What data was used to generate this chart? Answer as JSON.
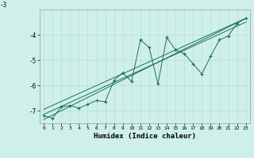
{
  "title": "",
  "xlabel": "Humidex (Indice chaleur)",
  "bg_color": "#cff0ea",
  "grid_color": "#b8ddd6",
  "line_color": "#1a6e5e",
  "xlim": [
    -0.5,
    23.5
  ],
  "ylim": [
    -7.5,
    -3.0
  ],
  "yticks": [
    -7,
    -6,
    -5,
    -4
  ],
  "ytick_labels": [
    "-7",
    "-6",
    "-5",
    "-4"
  ],
  "xticks": [
    0,
    1,
    2,
    3,
    4,
    5,
    6,
    7,
    8,
    9,
    10,
    11,
    12,
    13,
    14,
    15,
    16,
    17,
    18,
    19,
    20,
    21,
    22,
    23
  ],
  "xtick_labels": [
    "0",
    "1",
    "2",
    "3",
    "4",
    "5",
    "6",
    "7",
    "8",
    "9",
    "10",
    "11",
    "12",
    "13",
    "14",
    "15",
    "16",
    "17",
    "18",
    "19",
    "20",
    "21",
    "22",
    "23"
  ],
  "scatter_x": [
    0,
    1,
    2,
    3,
    4,
    5,
    6,
    7,
    8,
    9,
    10,
    11,
    12,
    13,
    14,
    15,
    16,
    17,
    18,
    19,
    20,
    21,
    22,
    23
  ],
  "scatter_y": [
    -7.2,
    -7.3,
    -6.85,
    -6.8,
    -6.9,
    -6.75,
    -6.6,
    -6.65,
    -5.8,
    -5.5,
    -5.85,
    -4.2,
    -4.5,
    -5.95,
    -4.1,
    -4.6,
    -4.75,
    -5.15,
    -5.55,
    -4.85,
    -4.2,
    -4.05,
    -3.55,
    -3.35
  ],
  "line1_x": [
    0,
    23
  ],
  "line1_y": [
    -7.35,
    -3.35
  ],
  "line2_x": [
    0,
    23
  ],
  "line2_y": [
    -7.15,
    -3.5
  ],
  "line3_x": [
    0,
    23
  ],
  "line3_y": [
    -6.95,
    -3.35
  ]
}
